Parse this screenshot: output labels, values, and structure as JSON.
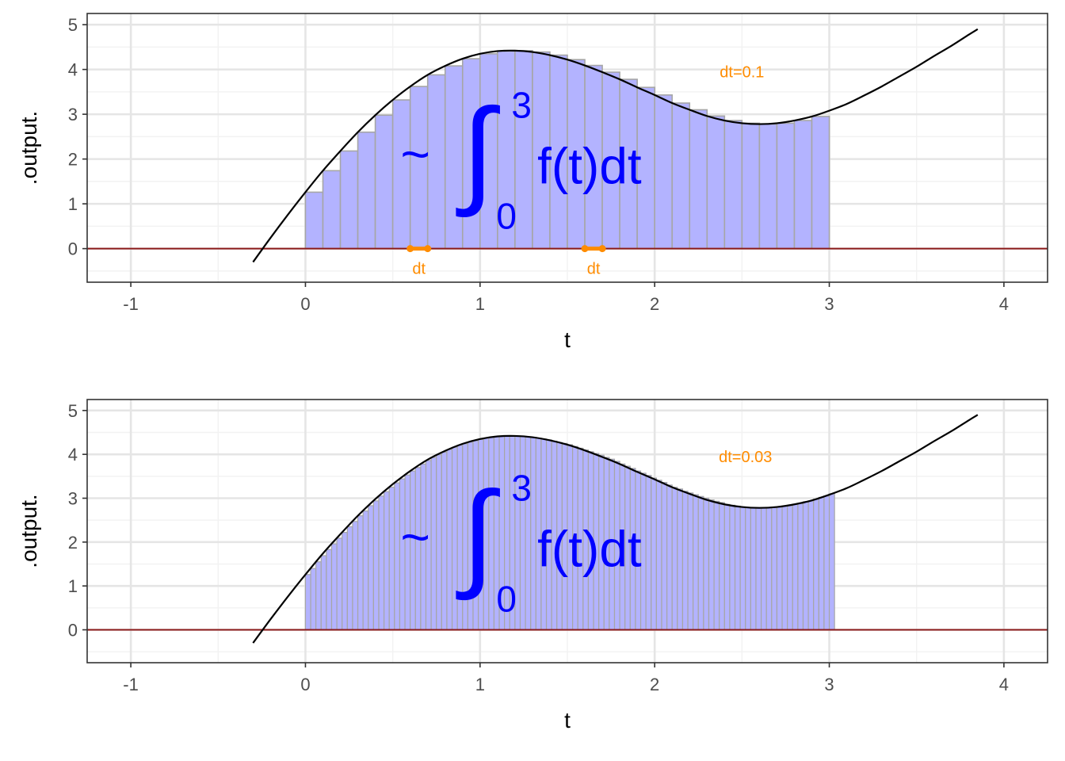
{
  "chart_data": [
    {
      "type": "bar",
      "title": "",
      "xlabel": "t",
      "ylabel": ".output.",
      "xlim": [
        -1.25,
        4.25
      ],
      "ylim": [
        -0.75,
        5.25
      ],
      "x_ticks": [
        -1,
        0,
        1,
        2,
        3,
        4
      ],
      "y_ticks": [
        0,
        1,
        2,
        3,
        4,
        5
      ],
      "grid": true,
      "curve": {
        "description": "f(t)",
        "x": [
          -0.3,
          -0.2,
          -0.1,
          0.0,
          0.1,
          0.2,
          0.3,
          0.4,
          0.5,
          0.6,
          0.7,
          0.8,
          0.9,
          1.0,
          1.1,
          1.2,
          1.3,
          1.4,
          1.5,
          1.6,
          1.7,
          1.8,
          1.9,
          2.0,
          2.1,
          2.2,
          2.3,
          2.4,
          2.5,
          2.6,
          2.7,
          2.8,
          2.9,
          3.0,
          3.1,
          3.2,
          3.3,
          3.4,
          3.5,
          3.6,
          3.7,
          3.8,
          3.85
        ],
        "y": [
          -0.3,
          0.24,
          0.76,
          1.26,
          1.74,
          2.18,
          2.6,
          2.98,
          3.32,
          3.62,
          3.88,
          4.08,
          4.24,
          4.35,
          4.41,
          4.42,
          4.39,
          4.32,
          4.22,
          4.09,
          3.94,
          3.78,
          3.6,
          3.43,
          3.25,
          3.1,
          2.96,
          2.86,
          2.8,
          2.78,
          2.8,
          2.86,
          2.95,
          3.08,
          3.23,
          3.42,
          3.62,
          3.84,
          4.06,
          4.3,
          4.53,
          4.78,
          4.9
        ]
      },
      "rectangles": {
        "dt": 0.1,
        "x_start": [
          0.0,
          0.1,
          0.2,
          0.3,
          0.4,
          0.5,
          0.6,
          0.7,
          0.8,
          0.9,
          1.0,
          1.1,
          1.2,
          1.3,
          1.4,
          1.5,
          1.6,
          1.7,
          1.8,
          1.9,
          2.0,
          2.1,
          2.2,
          2.3,
          2.4,
          2.5,
          2.6,
          2.7,
          2.8,
          2.9
        ],
        "height": [
          1.26,
          1.74,
          2.18,
          2.6,
          2.98,
          3.32,
          3.62,
          3.88,
          4.08,
          4.24,
          4.35,
          4.41,
          4.42,
          4.39,
          4.32,
          4.22,
          4.09,
          3.94,
          3.78,
          3.6,
          3.43,
          3.25,
          3.1,
          2.96,
          2.86,
          2.8,
          2.78,
          2.8,
          2.86,
          2.95
        ]
      },
      "baseline_y": 0,
      "dt_markers": [
        {
          "x0": 0.6,
          "x1": 0.7,
          "label": "dt"
        },
        {
          "x0": 1.6,
          "x1": 1.7,
          "label": "dt"
        }
      ],
      "annotation": {
        "text": "dt=0.1",
        "x": 2.5,
        "y": 3.95
      },
      "formula": {
        "prefix": "~",
        "integral": "∫",
        "upper": "3",
        "lower": "0",
        "integrand": "f(t)dt"
      }
    },
    {
      "type": "bar",
      "title": "",
      "xlabel": "t",
      "ylabel": ".output.",
      "xlim": [
        -1.25,
        4.25
      ],
      "ylim": [
        -0.75,
        5.25
      ],
      "x_ticks": [
        -1,
        0,
        1,
        2,
        3,
        4
      ],
      "y_ticks": [
        0,
        1,
        2,
        3,
        4,
        5
      ],
      "grid": true,
      "curve": {
        "description": "f(t)",
        "x": [
          -0.3,
          -0.2,
          -0.1,
          0.0,
          0.1,
          0.2,
          0.3,
          0.4,
          0.5,
          0.6,
          0.7,
          0.8,
          0.9,
          1.0,
          1.1,
          1.2,
          1.3,
          1.4,
          1.5,
          1.6,
          1.7,
          1.8,
          1.9,
          2.0,
          2.1,
          2.2,
          2.3,
          2.4,
          2.5,
          2.6,
          2.7,
          2.8,
          2.9,
          3.0,
          3.1,
          3.2,
          3.3,
          3.4,
          3.5,
          3.6,
          3.7,
          3.8,
          3.85
        ],
        "y": [
          -0.3,
          0.24,
          0.76,
          1.26,
          1.74,
          2.18,
          2.6,
          2.98,
          3.32,
          3.62,
          3.88,
          4.08,
          4.24,
          4.35,
          4.41,
          4.42,
          4.39,
          4.32,
          4.22,
          4.09,
          3.94,
          3.78,
          3.6,
          3.43,
          3.25,
          3.1,
          2.96,
          2.86,
          2.8,
          2.78,
          2.8,
          2.86,
          2.95,
          3.08,
          3.23,
          3.42,
          3.62,
          3.84,
          4.06,
          4.3,
          4.53,
          4.78,
          4.9
        ]
      },
      "rectangles": {
        "dt": 0.03,
        "x_start": [
          0.0,
          0.03,
          0.06,
          0.09,
          0.12,
          0.15,
          0.18,
          0.21,
          0.24,
          0.27,
          0.3,
          0.33,
          0.36,
          0.39,
          0.42,
          0.45,
          0.48,
          0.51,
          0.54,
          0.57,
          0.6,
          0.63,
          0.66,
          0.69,
          0.72,
          0.75,
          0.78,
          0.81,
          0.84,
          0.87,
          0.9,
          0.93,
          0.96,
          0.99,
          1.02,
          1.05,
          1.08,
          1.11,
          1.14,
          1.17,
          1.2,
          1.23,
          1.26,
          1.29,
          1.32,
          1.35,
          1.38,
          1.41,
          1.44,
          1.47,
          1.5,
          1.53,
          1.56,
          1.59,
          1.62,
          1.65,
          1.68,
          1.71,
          1.74,
          1.77,
          1.8,
          1.83,
          1.86,
          1.89,
          1.92,
          1.95,
          1.98,
          2.01,
          2.04,
          2.07,
          2.1,
          2.13,
          2.16,
          2.19,
          2.22,
          2.25,
          2.28,
          2.31,
          2.34,
          2.37,
          2.4,
          2.43,
          2.46,
          2.49,
          2.52,
          2.55,
          2.58,
          2.61,
          2.64,
          2.67,
          2.7,
          2.73,
          2.76,
          2.79,
          2.82,
          2.85,
          2.88,
          2.91,
          2.94,
          2.97,
          3.0
        ],
        "height": [
          1.26,
          1.4,
          1.55,
          1.69,
          1.83,
          1.96,
          2.09,
          2.22,
          2.35,
          2.47,
          2.6,
          2.71,
          2.83,
          2.94,
          3.05,
          3.15,
          3.25,
          3.35,
          3.44,
          3.53,
          3.62,
          3.7,
          3.78,
          3.86,
          3.93,
          3.99,
          4.05,
          4.11,
          4.16,
          4.21,
          4.24,
          4.28,
          4.31,
          4.34,
          4.37,
          4.39,
          4.41,
          4.41,
          4.42,
          4.42,
          4.42,
          4.41,
          4.4,
          4.39,
          4.37,
          4.35,
          4.33,
          4.3,
          4.27,
          4.25,
          4.22,
          4.18,
          4.14,
          4.1,
          4.06,
          4.02,
          3.98,
          3.93,
          3.89,
          3.84,
          3.78,
          3.73,
          3.68,
          3.62,
          3.57,
          3.52,
          3.46,
          3.41,
          3.36,
          3.3,
          3.25,
          3.21,
          3.16,
          3.12,
          3.08,
          3.04,
          3.0,
          2.96,
          2.93,
          2.9,
          2.86,
          2.84,
          2.82,
          2.8,
          2.79,
          2.79,
          2.78,
          2.78,
          2.78,
          2.79,
          2.8,
          2.82,
          2.83,
          2.86,
          2.88,
          2.92,
          2.94,
          2.98,
          3.02,
          3.05,
          3.1
        ]
      },
      "baseline_y": 0,
      "dt_markers": [],
      "annotation": {
        "text": "dt=0.03",
        "x": 2.52,
        "y": 3.95
      },
      "formula": {
        "prefix": "~",
        "integral": "∫",
        "upper": "3",
        "lower": "0",
        "integrand": "f(t)dt"
      }
    }
  ],
  "colors": {
    "curve": "#000000",
    "bar_fill": "#b3b3ff",
    "bar_stroke": "#a6a6a6",
    "baseline": "#8b1a1a",
    "annotation": "#ff8c00",
    "formula": "#0000ff",
    "grid_major": "#e5e5e5",
    "grid_minor": "#f2f2f2",
    "panel_border": "#333333",
    "tick_text": "#4d4d4d"
  }
}
